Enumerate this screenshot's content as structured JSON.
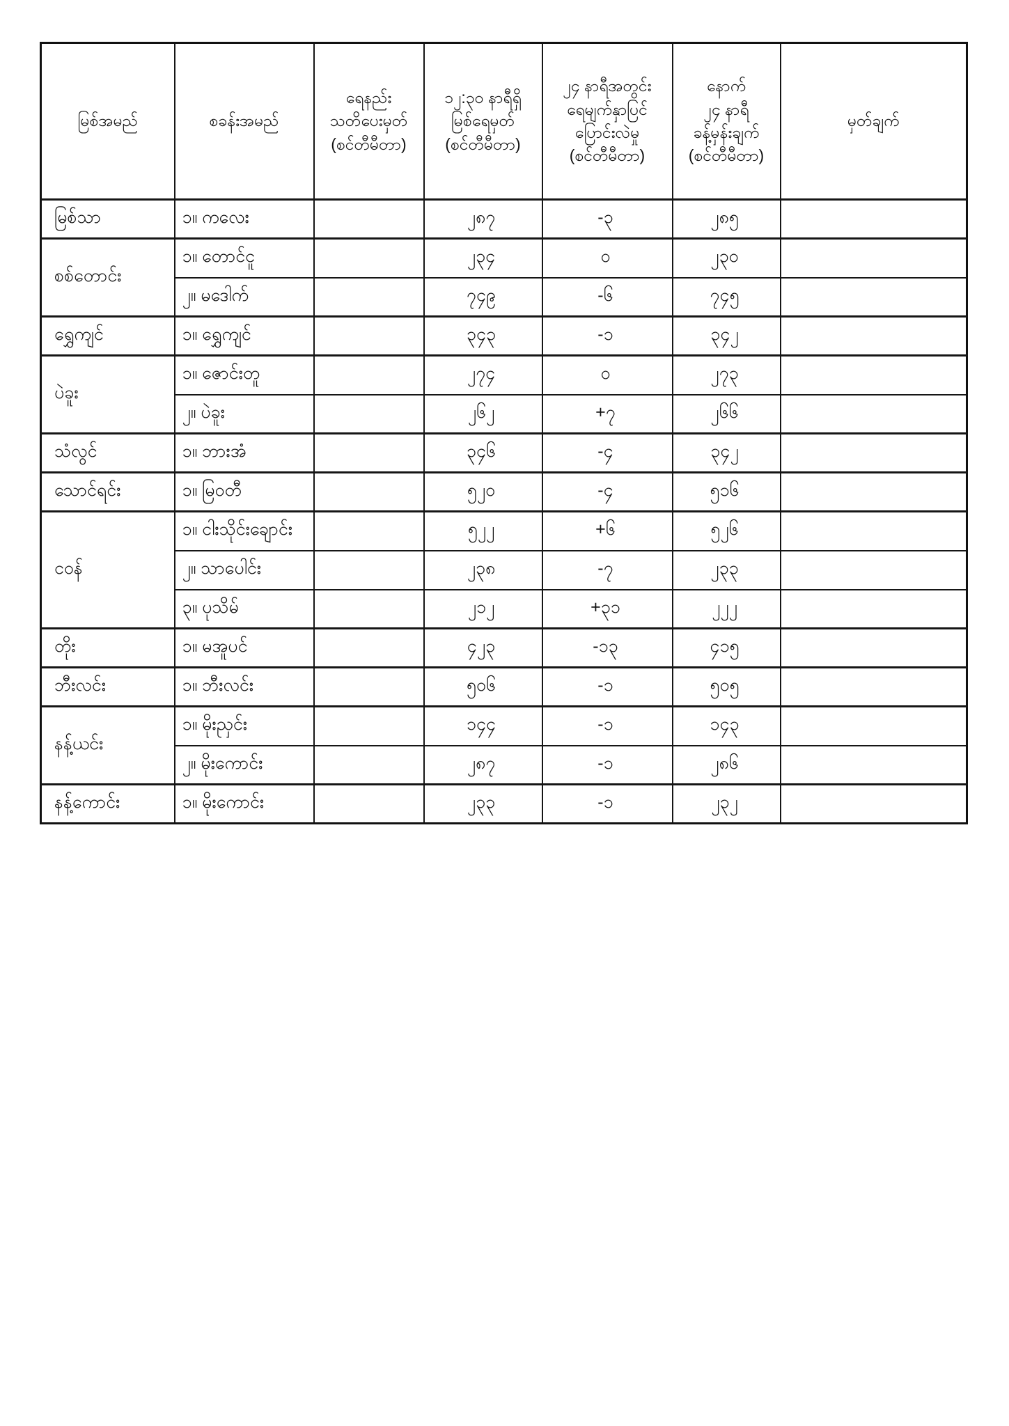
{
  "page": {
    "background_color": "#ffffff",
    "border_color": "#151515",
    "description": "Burmese river water-level bulletin table"
  },
  "table": {
    "columns": [
      {
        "key": "river",
        "label": "မြစ်အမည်"
      },
      {
        "key": "station",
        "label": "စခန်းအမည်"
      },
      {
        "key": "warning",
        "label": "ရေနည်း\nသတိပေးမှတ်\n(စင်တီမီတာ)"
      },
      {
        "key": "level",
        "label": "၁၂:၃၀ နာရီရှိ\nမြစ်ရေမှတ်\n(စင်တီမီတာ)"
      },
      {
        "key": "change",
        "label": "၂၄ နာရီအတွင်း\nရေမျက်နှာပြင်\nပြောင်းလဲမှု\n(စင်တီမီတာ)"
      },
      {
        "key": "forecast",
        "label": "နောက်\n၂၄ နာရီ\nခန့်မှန်းချက်\n(စင်တီမီတာ)"
      },
      {
        "key": "remark",
        "label": "မှတ်ချက်"
      }
    ],
    "groups": [
      {
        "river": "မြစ်သာ",
        "rows": [
          {
            "station": "၁။ ကလေး",
            "warning": "",
            "level": "၂၈၇",
            "change": "-၃",
            "forecast": "၂၈၅",
            "remark": ""
          }
        ]
      },
      {
        "river": "စစ်တောင်း",
        "rows": [
          {
            "station": "၁။ တောင်ငူ",
            "warning": "",
            "level": "၂၃၄",
            "change": "၀",
            "forecast": "၂၃၀",
            "remark": ""
          },
          {
            "station": "၂။ မဒေါက်",
            "warning": "",
            "level": "၇၄၉",
            "change": "-၆",
            "forecast": "၇၄၅",
            "remark": ""
          }
        ]
      },
      {
        "river": "ရွှေကျင်",
        "rows": [
          {
            "station": "၁။ ရွှေကျင်",
            "warning": "",
            "level": "၃၄၃",
            "change": "-၁",
            "forecast": "၃၄၂",
            "remark": ""
          }
        ]
      },
      {
        "river": "ပဲခူး",
        "rows": [
          {
            "station": "၁။ ဇောင်းတူ",
            "warning": "",
            "level": "၂၇၄",
            "change": "၀",
            "forecast": "၂၇၃",
            "remark": ""
          },
          {
            "station": "၂။ ပဲခူး",
            "warning": "",
            "level": "၂၆၂",
            "change": "+၇",
            "forecast": "၂၆၆",
            "remark": ""
          }
        ]
      },
      {
        "river": "သံလွင်",
        "rows": [
          {
            "station": "၁။ ဘားအံ",
            "warning": "",
            "level": "၃၄၆",
            "change": "-၄",
            "forecast": "၃၄၂",
            "remark": ""
          }
        ]
      },
      {
        "river": "သောင်ရင်း",
        "rows": [
          {
            "station": "၁။ မြဝတီ",
            "warning": "",
            "level": "၅၂၀",
            "change": "-၄",
            "forecast": "၅၁၆",
            "remark": ""
          }
        ]
      },
      {
        "river": "ငဝန်",
        "rows": [
          {
            "station": "၁။ ငါးသိုင်းချောင်း",
            "warning": "",
            "level": "၅၂၂",
            "change": "+၆",
            "forecast": "၅၂၆",
            "remark": ""
          },
          {
            "station": "၂။ သာပေါင်း",
            "warning": "",
            "level": "၂၃၈",
            "change": "-၇",
            "forecast": "၂၃၃",
            "remark": ""
          },
          {
            "station": "၃။ ပုသိမ်",
            "warning": "",
            "level": "၂၁၂",
            "change": "+၃၁",
            "forecast": "၂၂၂",
            "remark": ""
          }
        ]
      },
      {
        "river": "တိုး",
        "rows": [
          {
            "station": "၁။ မအူပင်",
            "warning": "",
            "level": "၄၂၃",
            "change": "-၁၃",
            "forecast": "၄၁၅",
            "remark": ""
          }
        ]
      },
      {
        "river": "ဘီးလင်း",
        "rows": [
          {
            "station": "၁။ ဘီးလင်း",
            "warning": "",
            "level": "၅၀၆",
            "change": "-၁",
            "forecast": "၅၀၅",
            "remark": ""
          }
        ]
      },
      {
        "river": "နန့်ယင်း",
        "rows": [
          {
            "station": "၁။ မိုးညှင်း",
            "warning": "",
            "level": "၁၄၄",
            "change": "-၁",
            "forecast": "၁၄၃",
            "remark": ""
          },
          {
            "station": "၂။ မိုးကောင်း",
            "warning": "",
            "level": "၂၈၇",
            "change": "-၁",
            "forecast": "၂၈၆",
            "remark": ""
          }
        ]
      },
      {
        "river": "နန့်ကောင်း",
        "rows": [
          {
            "station": "၁။ မိုးကောင်း",
            "warning": "",
            "level": "၂၃၃",
            "change": "-၁",
            "forecast": "၂၃၂",
            "remark": ""
          }
        ]
      }
    ]
  }
}
